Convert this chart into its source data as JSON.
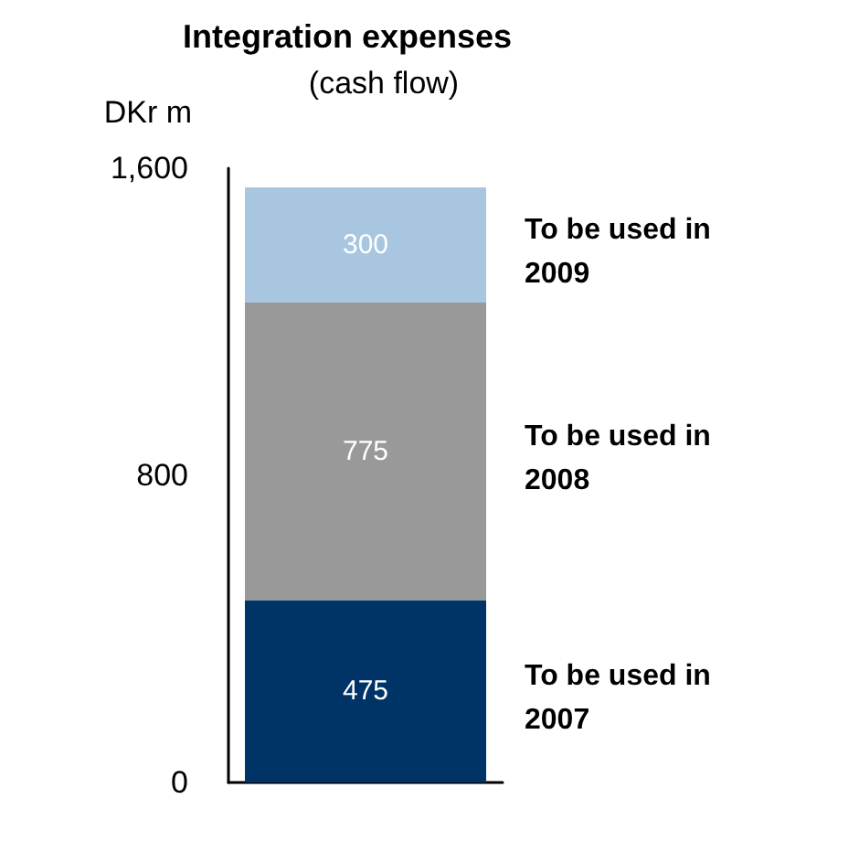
{
  "chart_data": {
    "type": "bar",
    "title": "Integration expenses",
    "subtitle": "(cash flow)",
    "ylabel": "DKr m",
    "categories": [
      null
    ],
    "stacked": true,
    "series": [
      {
        "name": "To be used in 2007",
        "color": "#003366",
        "values": [
          475
        ]
      },
      {
        "name": "To be used in 2008",
        "color": "#999999",
        "values": [
          775
        ]
      },
      {
        "name": "To be used in 2009",
        "color": "#a9c6e0",
        "values": [
          300
        ]
      }
    ],
    "data_labels": true,
    "ylim": [
      0,
      1600
    ],
    "yticks": [
      0,
      800,
      {
        "value": 1600,
        "label": "1,600"
      }
    ],
    "grid": false,
    "legend": false
  }
}
